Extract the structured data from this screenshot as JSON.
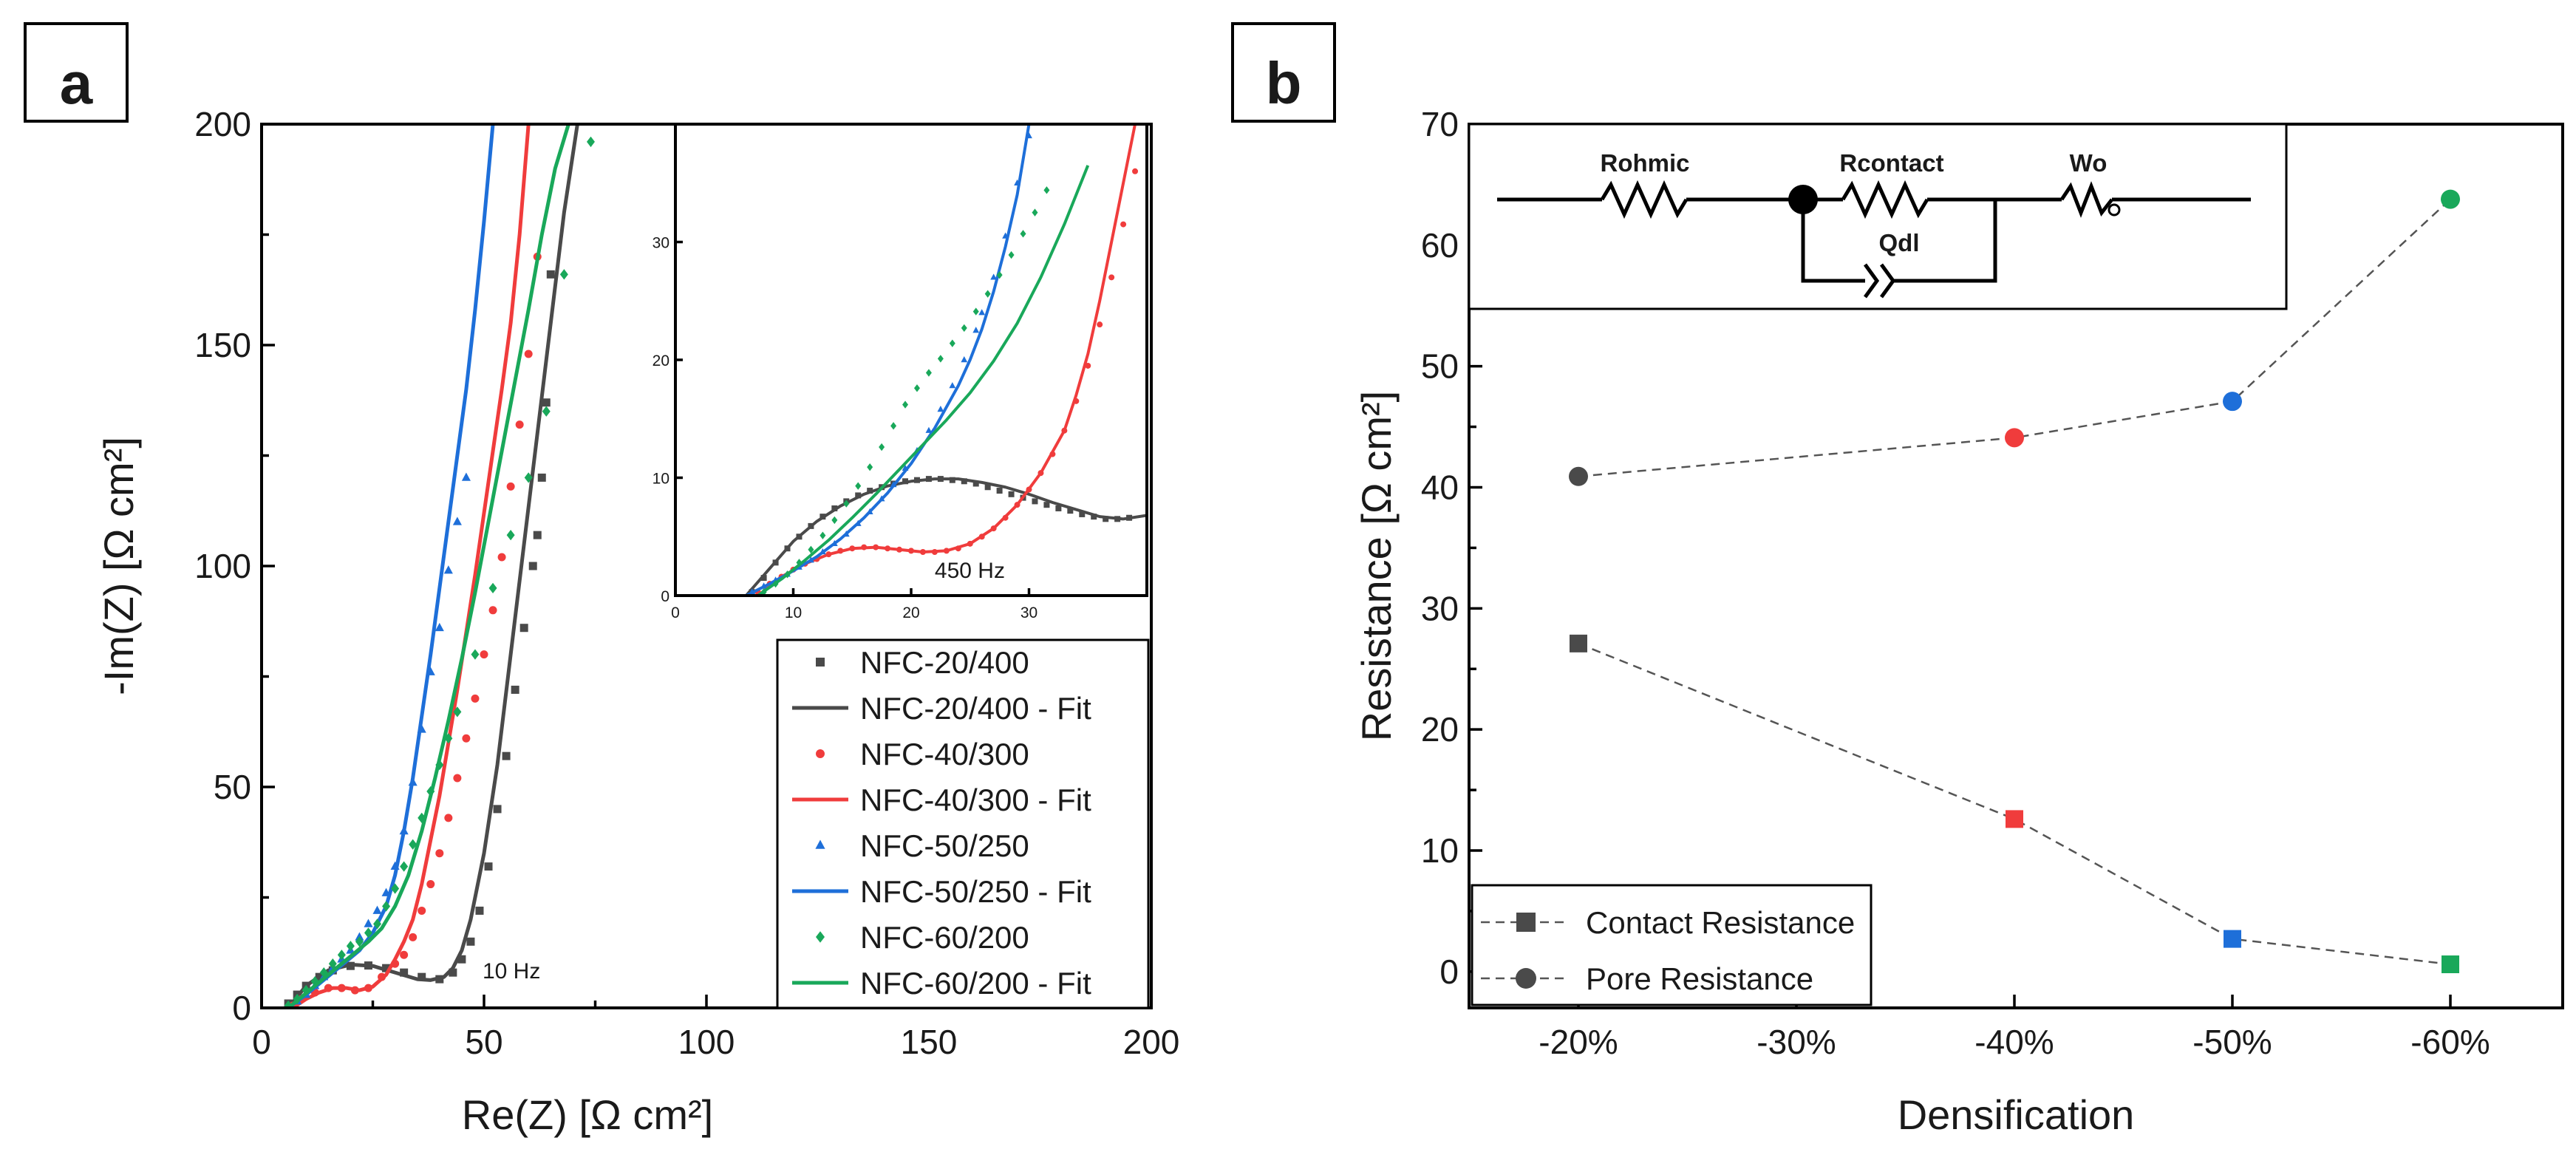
{
  "figure": {
    "panels": [
      {
        "letter": "a"
      },
      {
        "letter": "b"
      }
    ]
  },
  "chart_data": [
    {
      "panel": "a",
      "type": "scatter",
      "title": "",
      "xlabel": "Re(Z) [Ω cm²]",
      "ylabel": "-Im(Z) [Ω cm²]",
      "xlim": [
        0,
        200
      ],
      "ylim": [
        0,
        200
      ],
      "xticks": [
        "0",
        "50",
        "100",
        "150",
        "200"
      ],
      "yticks": [
        "0",
        "50",
        "100",
        "150",
        "200"
      ],
      "legend_position": "bottom-right",
      "annotations": [
        {
          "text": "10 Hz",
          "x": 49,
          "y": 8
        }
      ],
      "series": [
        {
          "name": "NFC-20/400",
          "kind": "points",
          "marker": "square",
          "color": "#4a4a4a",
          "x": [
            6,
            8,
            10,
            13,
            16,
            20,
            24,
            28,
            32,
            36,
            40,
            43,
            45,
            47,
            49,
            51,
            53,
            55,
            57,
            59,
            61,
            62,
            63,
            64,
            65
          ],
          "y": [
            1,
            3,
            5,
            7,
            8.5,
            9.5,
            9.6,
            9,
            8,
            7,
            6.5,
            8,
            11,
            15,
            22,
            32,
            45,
            57,
            72,
            86,
            100,
            107,
            120,
            137,
            166
          ]
        },
        {
          "name": "NFC-20/400 - Fit",
          "kind": "line",
          "color": "#4a4a4a",
          "x": [
            6,
            10,
            15,
            20,
            25,
            30,
            35,
            38,
            41,
            43,
            45,
            47,
            50,
            53,
            56,
            59,
            62,
            65,
            68,
            71
          ],
          "y": [
            0,
            5,
            8.5,
            9.8,
            9.5,
            8,
            6.5,
            6.3,
            7,
            9,
            13,
            20,
            35,
            55,
            80,
            105,
            130,
            155,
            180,
            200
          ]
        },
        {
          "name": "NFC-40/300",
          "kind": "points",
          "marker": "circle",
          "color": "#f03c3c",
          "x": [
            7,
            9,
            12,
            15,
            18,
            21,
            24,
            27,
            30,
            32,
            34,
            36,
            38,
            40,
            42,
            44,
            46,
            48,
            50,
            52,
            54,
            56,
            58,
            60,
            62
          ],
          "y": [
            0.5,
            2,
            3.5,
            4.5,
            4.5,
            4,
            4.5,
            7,
            10,
            12,
            16,
            22,
            28,
            35,
            43,
            52,
            61,
            70,
            80,
            90,
            102,
            118,
            132,
            148,
            170
          ]
        },
        {
          "name": "NFC-40/300 - Fit",
          "kind": "line",
          "color": "#f03c3c",
          "x": [
            7,
            10,
            13,
            16,
            19,
            22,
            25,
            28,
            30,
            32,
            34,
            36,
            38,
            40,
            42,
            44,
            46,
            48,
            50,
            52,
            54,
            56,
            58,
            60
          ],
          "y": [
            0,
            2,
            3.5,
            4.5,
            4.5,
            4,
            4.8,
            7.5,
            11,
            15,
            20,
            28,
            38,
            48,
            60,
            72,
            85,
            98,
            112,
            126,
            140,
            155,
            175,
            200
          ]
        },
        {
          "name": "NFC-50/250",
          "kind": "points",
          "marker": "triangle",
          "color": "#1e6fd9",
          "x": [
            6,
            8,
            10,
            12,
            14,
            16,
            18,
            20,
            22,
            24,
            26,
            28,
            30,
            32,
            34,
            36,
            38,
            40,
            42,
            44,
            46
          ],
          "y": [
            0.5,
            1.5,
            3,
            5,
            7,
            9,
            11,
            13,
            16,
            19,
            22,
            26,
            32,
            40,
            51,
            63,
            76,
            86,
            99,
            110,
            120
          ]
        },
        {
          "name": "NFC-50/250 - Fit",
          "kind": "line",
          "color": "#1e6fd9",
          "x": [
            6,
            8,
            10,
            13,
            16,
            19,
            22,
            25,
            28,
            30,
            32,
            34,
            36,
            38,
            40,
            42,
            44,
            46,
            48,
            50,
            52
          ],
          "y": [
            0,
            1.5,
            3,
            5.5,
            8,
            10.5,
            13,
            17,
            23,
            30,
            40,
            52,
            66,
            80,
            95,
            110,
            125,
            140,
            158,
            178,
            200
          ]
        },
        {
          "name": "NFC-60/200",
          "kind": "points",
          "marker": "diamond",
          "color": "#19a85a",
          "x": [
            6,
            8,
            10,
            12,
            14,
            16,
            18,
            20,
            22,
            24,
            26,
            28,
            30,
            32,
            34,
            36,
            38,
            40,
            42,
            44,
            48,
            52,
            56,
            60,
            64,
            68,
            74
          ],
          "y": [
            0.5,
            2,
            4,
            6,
            8,
            10,
            12,
            14,
            15,
            17,
            19,
            23,
            27,
            32,
            37,
            43,
            49,
            55,
            61,
            67,
            80,
            95,
            107,
            120,
            135,
            166,
            196
          ]
        },
        {
          "name": "NFC-60/200 - Fit",
          "kind": "line",
          "color": "#19a85a",
          "x": [
            6,
            9,
            12,
            15,
            18,
            21,
            24,
            27,
            30,
            33,
            36,
            39,
            42,
            45,
            48,
            51,
            54,
            57,
            60,
            63,
            66,
            69
          ],
          "y": [
            0,
            2.5,
            5,
            7.5,
            10,
            12.5,
            15,
            18,
            23,
            30,
            40,
            52,
            65,
            79,
            94,
            110,
            126,
            142,
            158,
            175,
            190,
            200
          ]
        }
      ]
    },
    {
      "panel": "a-inset",
      "type": "scatter",
      "title": "",
      "xlabel": "",
      "ylabel": "",
      "xlim": [
        0,
        40
      ],
      "ylim": [
        0,
        40
      ],
      "xticks": [
        "0",
        "10",
        "20",
        "30"
      ],
      "yticks": [
        "0",
        "10",
        "20",
        "30"
      ],
      "annotations": [
        {
          "text": "450 Hz",
          "x": 22,
          "y": 1.5
        }
      ],
      "series": [
        {
          "name": "NFC-20/400",
          "kind": "points",
          "marker": "square",
          "color": "#4a4a4a",
          "x": [
            6.5,
            7.5,
            8.5,
            9.5,
            10.5,
            11.5,
            12.5,
            13.5,
            14.5,
            15.5,
            16.5,
            17.5,
            18.5,
            19.5,
            20.5,
            21.5,
            22.5,
            23.5,
            24.5,
            25.5,
            26.5,
            27.5,
            28.5,
            29.5,
            30.5,
            31.5,
            32.5,
            33.5,
            34.5,
            35.5,
            36.5,
            37.5,
            38.5
          ],
          "y": [
            0.3,
            1.5,
            2.8,
            4,
            5,
            5.9,
            6.7,
            7.4,
            8,
            8.5,
            8.9,
            9.2,
            9.5,
            9.7,
            9.8,
            9.9,
            9.9,
            9.8,
            9.7,
            9.5,
            9.2,
            8.9,
            8.6,
            8.3,
            8,
            7.7,
            7.4,
            7.2,
            6.9,
            6.7,
            6.5,
            6.5,
            6.6
          ]
        },
        {
          "name": "NFC-20/400 - Fit",
          "kind": "line",
          "color": "#4a4a4a",
          "x": [
            6,
            8,
            10,
            12,
            14,
            16,
            18,
            20,
            22,
            24,
            26,
            28,
            30,
            32,
            34,
            36,
            38,
            40
          ],
          "y": [
            0,
            2.3,
            4.6,
            6.3,
            7.6,
            8.6,
            9.3,
            9.7,
            9.9,
            9.9,
            9.6,
            9.2,
            8.6,
            7.9,
            7.3,
            6.7,
            6.5,
            6.8
          ]
        },
        {
          "name": "NFC-40/300",
          "kind": "points",
          "marker": "circle",
          "color": "#f03c3c",
          "x": [
            7,
            8,
            9,
            10,
            11,
            12,
            13,
            14,
            15,
            16,
            17,
            18,
            19,
            20,
            21,
            22,
            23,
            24,
            25,
            26,
            27,
            28,
            29,
            30,
            31,
            32,
            33,
            34,
            35,
            36,
            37,
            38,
            39
          ],
          "y": [
            0.3,
            1,
            1.6,
            2.2,
            2.7,
            3.1,
            3.5,
            3.8,
            4,
            4.1,
            4.1,
            4,
            3.9,
            3.8,
            3.7,
            3.7,
            3.8,
            4,
            4.4,
            5,
            5.7,
            6.6,
            7.7,
            9,
            10.4,
            12,
            14,
            16.5,
            19.5,
            23,
            27,
            31.5,
            36
          ]
        },
        {
          "name": "NFC-40/300 - Fit",
          "kind": "line",
          "color": "#f03c3c",
          "x": [
            7,
            9,
            11,
            13,
            15,
            17,
            19,
            21,
            23,
            25,
            27,
            29,
            31,
            33,
            34,
            35,
            36,
            37,
            38,
            39
          ],
          "y": [
            0,
            1.6,
            2.7,
            3.5,
            4,
            4.1,
            3.9,
            3.7,
            3.8,
            4.4,
            5.7,
            7.7,
            10.4,
            14,
            17,
            20.5,
            25,
            30,
            35,
            40
          ]
        },
        {
          "name": "NFC-50/250",
          "kind": "points",
          "marker": "triangle",
          "color": "#1e6fd9",
          "x": [
            6.5,
            7.5,
            8.5,
            9.5,
            10.5,
            11.5,
            12.5,
            13.5,
            14.5,
            15.5,
            16.5,
            17.5,
            18.5,
            19.5,
            20.5,
            21.5,
            22.5,
            23.5,
            24.5,
            25.5,
            26,
            27,
            28,
            29,
            30
          ],
          "y": [
            0.3,
            0.8,
            1.3,
            1.8,
            2.4,
            3,
            3.7,
            4.4,
            5.2,
            6.1,
            7.1,
            8.2,
            9.4,
            10.8,
            12.3,
            14,
            15.8,
            17.8,
            20,
            22.5,
            24,
            27,
            30.5,
            35,
            39
          ]
        },
        {
          "name": "NFC-50/250 - Fit",
          "kind": "line",
          "color": "#1e6fd9",
          "x": [
            6,
            8,
            10,
            12,
            14,
            16,
            18,
            20,
            22,
            24,
            25,
            26,
            27,
            28,
            29,
            30
          ],
          "y": [
            0,
            1,
            2.1,
            3.3,
            4.8,
            6.6,
            8.7,
            11.2,
            14.2,
            17.8,
            20,
            22.6,
            25.8,
            29.6,
            34,
            40
          ]
        },
        {
          "name": "NFC-60/200",
          "kind": "points",
          "marker": "diamond",
          "color": "#19a85a",
          "x": [
            7.5,
            8.5,
            9.5,
            10.5,
            11.5,
            12.5,
            13.5,
            14.5,
            15.5,
            16.5,
            17.5,
            18.5,
            19.5,
            20.5,
            21.5,
            22.5,
            23.5,
            24.5,
            25.5,
            26.5,
            27.5,
            28.5,
            29.5,
            30.5,
            31.5
          ],
          "y": [
            0.3,
            1,
            1.8,
            2.8,
            3.9,
            5.1,
            6.4,
            7.8,
            9.3,
            10.9,
            12.6,
            14.4,
            16.2,
            17.6,
            18.9,
            20.1,
            21.4,
            22.7,
            24.1,
            25.6,
            27.2,
            28.9,
            30.7,
            32.5,
            34.4
          ]
        },
        {
          "name": "NFC-60/200 - Fit",
          "kind": "line",
          "color": "#19a85a",
          "x": [
            7,
            9,
            11,
            13,
            15,
            17,
            19,
            21,
            23,
            25,
            27,
            29,
            31,
            33,
            35
          ],
          "y": [
            0,
            1.4,
            3,
            4.7,
            6.6,
            8.6,
            10.7,
            12.8,
            14.9,
            17.2,
            19.9,
            23.1,
            27,
            31.5,
            36.5
          ]
        }
      ]
    },
    {
      "panel": "b",
      "type": "line",
      "title": "",
      "xlabel": "Densification",
      "ylabel": "Resistance [Ω cm²]",
      "categories": [
        "-20%",
        "-30%",
        "-40%",
        "-50%",
        "-60%"
      ],
      "ylim": [
        -3,
        70
      ],
      "yticks": [
        "0",
        "10",
        "20",
        "30",
        "40",
        "50",
        "60",
        "70"
      ],
      "legend_position": "bottom-left",
      "point_colors": [
        "#4a4a4a",
        "#f03c3c",
        "#1e6fd9",
        "#19a85a"
      ],
      "series": [
        {
          "name": "Contact Resistance",
          "marker": "square",
          "x": [
            "-20%",
            "-40%",
            "-50%",
            "-60%"
          ],
          "values": [
            27.1,
            12.6,
            2.7,
            0.6
          ]
        },
        {
          "name": "Pore Resistance",
          "marker": "circle",
          "x": [
            "-20%",
            "-40%",
            "-50%",
            "-60%"
          ],
          "values": [
            40.9,
            44.1,
            47.1,
            63.8
          ]
        }
      ],
      "circuit": {
        "labels": [
          "Rohmic",
          "Rcontact",
          "Wo",
          "Qdl"
        ]
      }
    }
  ]
}
